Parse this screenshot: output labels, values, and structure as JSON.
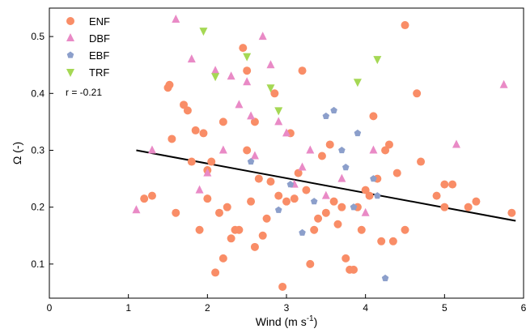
{
  "chart_data": {
    "type": "scatter",
    "xlabel": "Wind (m s",
    "xlabel_sup": "-1",
    "xlabel_end": ")",
    "ylabel": "Ω (-)",
    "xlim": [
      0,
      6
    ],
    "ylim": [
      0.04,
      0.55
    ],
    "xticks": [
      0,
      1,
      2,
      3,
      4,
      5,
      6
    ],
    "yticks": [
      0.1,
      0.2,
      0.3,
      0.4,
      0.5
    ],
    "xtick_labels": [
      "0",
      "1",
      "2",
      "3",
      "4",
      "5",
      "6"
    ],
    "ytick_labels": [
      "0.1",
      "0.2",
      "0.3",
      "0.4",
      "0.5"
    ],
    "grid": false,
    "legend_position": "top-left",
    "annotation": "r = -0.21",
    "regression": {
      "x": [
        1.1,
        5.9
      ],
      "y": [
        0.3,
        0.176
      ],
      "color": "#000000"
    },
    "series": [
      {
        "name": "ENF",
        "marker": "circle",
        "color": "#f98d67",
        "points": [
          [
            1.2,
            0.215
          ],
          [
            1.3,
            0.22
          ],
          [
            1.5,
            0.41
          ],
          [
            1.52,
            0.415
          ],
          [
            1.55,
            0.32
          ],
          [
            1.6,
            0.19
          ],
          [
            1.7,
            0.38
          ],
          [
            1.75,
            0.37
          ],
          [
            1.8,
            0.28
          ],
          [
            1.85,
            0.335
          ],
          [
            1.9,
            0.16
          ],
          [
            1.95,
            0.33
          ],
          [
            2.0,
            0.265
          ],
          [
            2.0,
            0.215
          ],
          [
            2.05,
            0.28
          ],
          [
            2.1,
            0.085
          ],
          [
            2.15,
            0.19
          ],
          [
            2.2,
            0.11
          ],
          [
            2.2,
            0.35
          ],
          [
            2.25,
            0.2
          ],
          [
            2.3,
            0.145
          ],
          [
            2.35,
            0.16
          ],
          [
            2.4,
            0.16
          ],
          [
            2.45,
            0.48
          ],
          [
            2.5,
            0.44
          ],
          [
            2.5,
            0.3
          ],
          [
            2.55,
            0.21
          ],
          [
            2.6,
            0.13
          ],
          [
            2.6,
            0.35
          ],
          [
            2.65,
            0.25
          ],
          [
            2.7,
            0.15
          ],
          [
            2.75,
            0.18
          ],
          [
            2.8,
            0.245
          ],
          [
            2.85,
            0.4
          ],
          [
            2.9,
            0.22
          ],
          [
            2.95,
            0.06
          ],
          [
            3.0,
            0.21
          ],
          [
            3.05,
            0.33
          ],
          [
            3.1,
            0.215
          ],
          [
            3.15,
            0.26
          ],
          [
            3.2,
            0.44
          ],
          [
            3.25,
            0.23
          ],
          [
            3.3,
            0.1
          ],
          [
            3.35,
            0.16
          ],
          [
            3.4,
            0.18
          ],
          [
            3.45,
            0.29
          ],
          [
            3.5,
            0.19
          ],
          [
            3.55,
            0.31
          ],
          [
            3.6,
            0.21
          ],
          [
            3.65,
            0.17
          ],
          [
            3.7,
            0.2
          ],
          [
            3.75,
            0.11
          ],
          [
            3.8,
            0.09
          ],
          [
            3.85,
            0.09
          ],
          [
            3.9,
            0.2
          ],
          [
            3.95,
            0.16
          ],
          [
            4.0,
            0.23
          ],
          [
            4.05,
            0.22
          ],
          [
            4.1,
            0.36
          ],
          [
            4.15,
            0.25
          ],
          [
            4.2,
            0.14
          ],
          [
            4.25,
            0.3
          ],
          [
            4.3,
            0.31
          ],
          [
            4.35,
            0.14
          ],
          [
            4.4,
            0.26
          ],
          [
            4.5,
            0.52
          ],
          [
            4.5,
            0.16
          ],
          [
            4.65,
            0.4
          ],
          [
            4.7,
            0.28
          ],
          [
            4.9,
            0.22
          ],
          [
            5.0,
            0.2
          ],
          [
            5.0,
            0.24
          ],
          [
            5.1,
            0.24
          ],
          [
            5.3,
            0.2
          ],
          [
            5.4,
            0.21
          ],
          [
            5.85,
            0.19
          ]
        ]
      },
      {
        "name": "DBF",
        "marker": "triangle-up",
        "color": "#e98ac6",
        "points": [
          [
            1.1,
            0.195
          ],
          [
            1.3,
            0.3
          ],
          [
            1.6,
            0.53
          ],
          [
            1.8,
            0.46
          ],
          [
            1.9,
            0.23
          ],
          [
            2.0,
            0.26
          ],
          [
            2.1,
            0.44
          ],
          [
            2.2,
            0.3
          ],
          [
            2.3,
            0.43
          ],
          [
            2.4,
            0.38
          ],
          [
            2.5,
            0.42
          ],
          [
            2.55,
            0.36
          ],
          [
            2.6,
            0.29
          ],
          [
            2.7,
            0.5
          ],
          [
            2.8,
            0.45
          ],
          [
            2.9,
            0.35
          ],
          [
            3.0,
            0.33
          ],
          [
            3.1,
            0.24
          ],
          [
            3.2,
            0.27
          ],
          [
            3.3,
            0.3
          ],
          [
            3.5,
            0.22
          ],
          [
            3.7,
            0.25
          ],
          [
            4.0,
            0.19
          ],
          [
            4.1,
            0.3
          ],
          [
            5.15,
            0.31
          ],
          [
            5.75,
            0.415
          ]
        ]
      },
      {
        "name": "EBF",
        "marker": "pentagon",
        "color": "#8c9fcb",
        "points": [
          [
            2.55,
            0.28
          ],
          [
            2.9,
            0.195
          ],
          [
            3.05,
            0.24
          ],
          [
            3.2,
            0.155
          ],
          [
            3.35,
            0.21
          ],
          [
            3.5,
            0.36
          ],
          [
            3.6,
            0.37
          ],
          [
            3.7,
            0.3
          ],
          [
            3.75,
            0.27
          ],
          [
            3.85,
            0.2
          ],
          [
            3.9,
            0.33
          ],
          [
            4.1,
            0.25
          ],
          [
            4.15,
            0.22
          ],
          [
            4.25,
            0.075
          ]
        ]
      },
      {
        "name": "TRF",
        "marker": "triangle-down",
        "color": "#a5d854",
        "points": [
          [
            1.95,
            0.51
          ],
          [
            2.1,
            0.43
          ],
          [
            2.5,
            0.465
          ],
          [
            2.8,
            0.41
          ],
          [
            2.9,
            0.37
          ],
          [
            3.9,
            0.42
          ],
          [
            4.15,
            0.46
          ]
        ]
      }
    ]
  }
}
